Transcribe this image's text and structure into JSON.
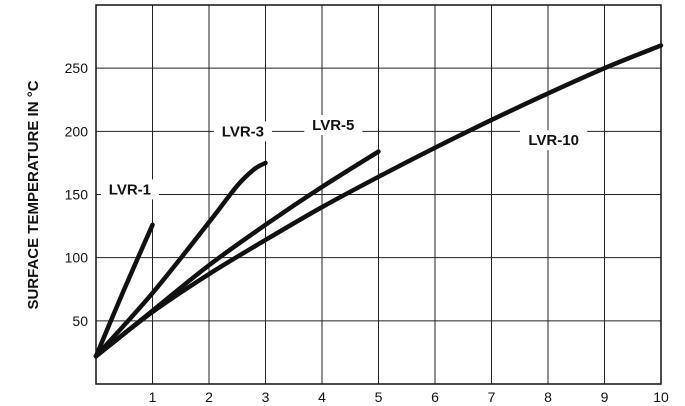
{
  "chart_data": {
    "type": "line",
    "title": "",
    "xlabel": "",
    "ylabel": "SURFACE TEMPERATURE IN °C",
    "xlim": [
      0,
      10
    ],
    "ylim": [
      0,
      300
    ],
    "xticks": [
      1,
      2,
      3,
      4,
      5,
      6,
      7,
      8,
      9,
      10
    ],
    "yticks": [
      50,
      100,
      150,
      200,
      250
    ],
    "grid": true,
    "series": [
      {
        "name": "LVR-1",
        "points": [
          [
            0,
            22
          ],
          [
            0.5,
            75
          ],
          [
            1,
            126
          ]
        ]
      },
      {
        "name": "LVR-3",
        "points": [
          [
            0,
            22
          ],
          [
            1,
            72
          ],
          [
            2,
            128
          ],
          [
            2.5,
            157
          ],
          [
            2.8,
            170
          ],
          [
            3,
            175
          ]
        ]
      },
      {
        "name": "LVR-5",
        "points": [
          [
            0,
            22
          ],
          [
            1,
            58
          ],
          [
            2,
            94
          ],
          [
            3,
            126
          ],
          [
            4,
            156
          ],
          [
            5,
            184
          ]
        ]
      },
      {
        "name": "LVR-10",
        "points": [
          [
            0,
            22
          ],
          [
            1,
            57
          ],
          [
            2,
            87
          ],
          [
            3,
            114
          ],
          [
            4,
            140
          ],
          [
            5,
            164
          ],
          [
            6,
            187
          ],
          [
            7,
            209
          ],
          [
            8,
            230
          ],
          [
            9,
            250
          ],
          [
            10,
            268
          ]
        ]
      }
    ]
  }
}
